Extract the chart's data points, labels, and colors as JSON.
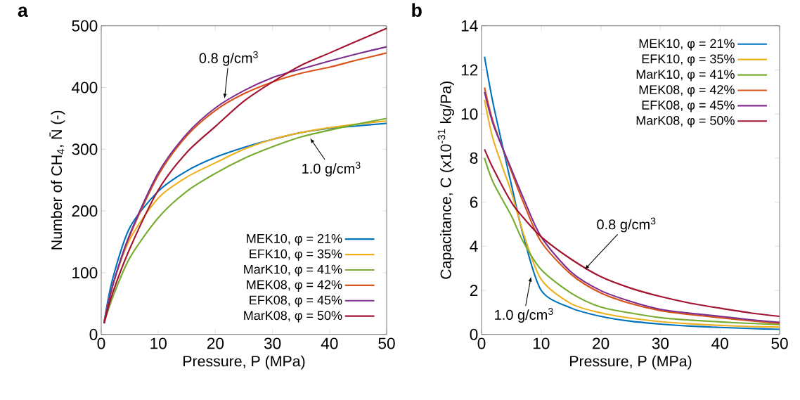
{
  "chart_data": [
    {
      "type": "line",
      "title": "a",
      "xlabel": "Pressure, P (MPa)",
      "ylabel": "Number of CH$_{4}$, N̄ (-)",
      "x": [
        0.5,
        2,
        5,
        10,
        15,
        20,
        25,
        30,
        35,
        40,
        45,
        50
      ],
      "series": [
        {
          "name": "MEK10, φ = 21%",
          "color": "#0072bd",
          "values": [
            20,
            90,
            173,
            232,
            265,
            287,
            303,
            316,
            327,
            334,
            338,
            342
          ]
        },
        {
          "name": "EFK10, φ = 35%",
          "color": "#edb120",
          "values": [
            18,
            79,
            154,
            221,
            255,
            278,
            300,
            316,
            327,
            335,
            341,
            346
          ]
        },
        {
          "name": "MarK10, φ = 41%",
          "color": "#77ac30",
          "values": [
            18,
            60,
            124,
            189,
            232,
            261,
            285,
            304,
            320,
            331,
            341,
            350
          ]
        },
        {
          "name": "MEK08, φ = 42%",
          "color": "#d95319",
          "values": [
            18,
            79,
            160,
            258,
            322,
            363,
            390,
            409,
            423,
            433,
            445,
            456
          ]
        },
        {
          "name": "EFK08, φ = 45%",
          "color": "#7e2f8e",
          "values": [
            18,
            79,
            162,
            262,
            325,
            367,
            395,
            416,
            430,
            443,
            455,
            466
          ]
        },
        {
          "name": "MarK08, φ = 50%",
          "color": "#a2142f",
          "values": [
            18,
            67,
            139,
            234,
            295,
            337,
            378,
            409,
            436,
            456,
            476,
            496
          ]
        }
      ],
      "xlim": [
        0,
        50
      ],
      "ylim": [
        0,
        500
      ],
      "xticks": [
        0,
        10,
        20,
        30,
        40,
        50
      ],
      "yticks": [
        0,
        100,
        200,
        300,
        400,
        500
      ],
      "legend": "bottom right",
      "annotations": [
        {
          "text": "0.8 g/cm$^{3}$",
          "x": 21.6,
          "y": 382
        },
        {
          "text": "1.0 g/cm$^{3}$",
          "x": 36.6,
          "y": 318
        }
      ]
    },
    {
      "type": "line",
      "title": "b",
      "xlabel": "Pressure, P (MPa)",
      "ylabel": "Capacitance, C (x10$^{-31}$ kg/Pa)",
      "x": [
        0.5,
        2,
        5,
        7,
        10,
        15,
        20,
        25,
        30,
        35,
        40,
        45,
        50
      ],
      "series": [
        {
          "name": "MEK10, φ = 21%",
          "color": "#0072bd",
          "values": [
            12.6,
            10.4,
            6.8,
            4.5,
            2.0,
            1.2,
            0.82,
            0.6,
            0.47,
            0.38,
            0.32,
            0.27,
            0.23
          ]
        },
        {
          "name": "EFK10, φ = 35%",
          "color": "#edb120",
          "values": [
            10.65,
            8.8,
            6.45,
            4.6,
            2.5,
            1.4,
            0.98,
            0.74,
            0.58,
            0.48,
            0.41,
            0.36,
            0.33
          ]
        },
        {
          "name": "MarK10, φ = 41%",
          "color": "#77ac30",
          "values": [
            8.0,
            6.87,
            5.38,
            4.2,
            2.94,
            1.88,
            1.24,
            0.97,
            0.76,
            0.65,
            0.57,
            0.5,
            0.45
          ]
        },
        {
          "name": "MEK08, φ = 42%",
          "color": "#d95319",
          "values": [
            11.2,
            9.6,
            7.4,
            6.0,
            4.2,
            2.73,
            1.88,
            1.4,
            1.08,
            0.9,
            0.76,
            0.62,
            0.5
          ]
        },
        {
          "name": "EFK08, φ = 45%",
          "color": "#7e2f8e",
          "values": [
            11.0,
            9.5,
            7.5,
            6.2,
            4.43,
            2.84,
            1.99,
            1.5,
            1.14,
            0.96,
            0.82,
            0.67,
            0.55
          ]
        },
        {
          "name": "MarK08, φ = 50%",
          "color": "#a2142f",
          "values": [
            8.4,
            7.5,
            6.0,
            5.3,
            4.43,
            3.42,
            2.62,
            2.1,
            1.72,
            1.42,
            1.19,
            0.98,
            0.82
          ]
        }
      ],
      "xlim": [
        0,
        50
      ],
      "ylim": [
        0,
        14
      ],
      "xticks": [
        0,
        10,
        20,
        30,
        40,
        50
      ],
      "yticks": [
        0,
        2,
        4,
        6,
        8,
        10,
        12,
        14
      ],
      "legend": "top right",
      "annotations": [
        {
          "text": "0.8 g/cm$^{3}$",
          "x": 17.3,
          "y": 2.94
        },
        {
          "text": "1.0 g/cm$^{3}$",
          "x": 8.3,
          "y": 2.62
        }
      ]
    }
  ]
}
